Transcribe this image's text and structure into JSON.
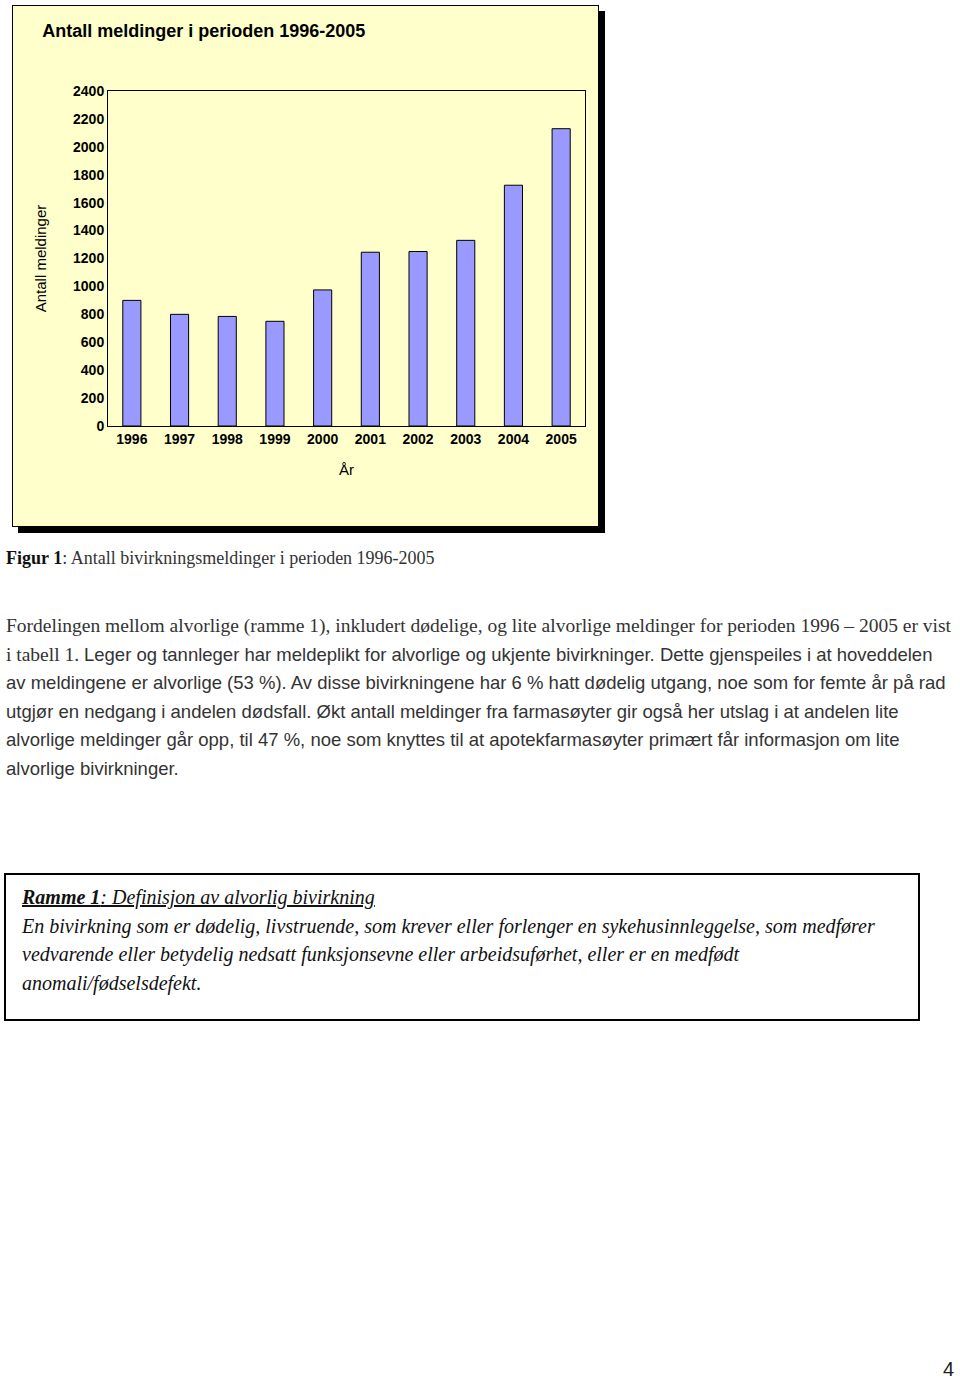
{
  "chart_data": {
    "type": "bar",
    "title": "Antall meldinger i perioden 1996-2005",
    "x_label": "År",
    "y_label": "Antall meldinger",
    "categories": [
      "1996",
      "1997",
      "1998",
      "1999",
      "2000",
      "2001",
      "2002",
      "2003",
      "2004",
      "2005"
    ],
    "values": [
      900,
      800,
      785,
      750,
      975,
      1245,
      1250,
      1330,
      1725,
      2130
    ],
    "color": "#9999ff",
    "ylim": [
      0,
      2400
    ],
    "yticks": [
      0,
      200,
      400,
      600,
      800,
      1000,
      1200,
      1400,
      1600,
      1800,
      2000,
      2200,
      2400
    ],
    "grid": false
  },
  "caption": [
    "Figur 1",
    ": Antall bivirkningsmeldinger i perioden 1996-2005"
  ],
  "paragraph": [
    "Fordelingen mellom alvorlige (ramme 1), inkludert dødelige, og lite alvorlige meldinger for perioden 1996 – 2005 er vist i tabell 1.",
    "Leger og tannleger har meldeplikt for alvorlige og ukjente bivirkninger. Dette gjenspeiles i at hoveddelen av meldingene er alvorlige (53 %). Av disse bivirkningene har 6 % hatt dødelig utgang, noe som for femte år på rad utgjør en nedgang i andelen dødsfall. Økt antall meldinger fra farmasøyter gir også her utslag i at andelen lite alvorlige meldinger går opp, til 47 %, noe som knyttes til at apotekfarmasøyter primært får informasjon om lite alvorlige bivirkninger."
  ],
  "box": {
    "title": [
      "Ramme 1",
      ": Definisjon av alvorlig bivirkning"
    ],
    "text": "En bivirkning som er dødelig, livstruende, som krever eller forlenger en sykehusinnleggelse, som medfører vedvarende eller betydelig nedsatt funksjonsevne eller arbeidsuførhet, eller er en medfødt anomali/fødselsdefekt."
  },
  "page_number": "4"
}
